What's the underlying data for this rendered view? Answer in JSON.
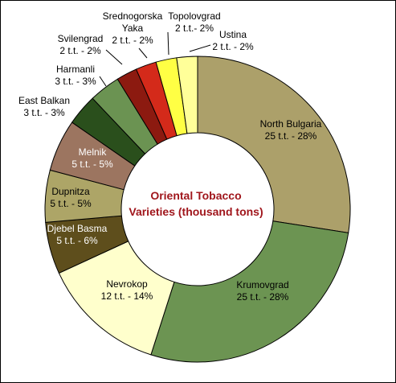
{
  "chart_data": {
    "type": "pie",
    "donut": true,
    "title": "Oriental Tobacco Varieties (thousand tons)",
    "title_lines": [
      "Oriental Tobacco",
      "Varieties (thousand tons)"
    ],
    "title_color": "#a0161c",
    "slices": [
      {
        "name": "North Bulgaria",
        "value": 25,
        "lines": [
          "North Bulgaria",
          "25 t.t. - 28%"
        ],
        "color": "#aca06a"
      },
      {
        "name": "Krumovgrad",
        "value": 25,
        "lines": [
          "Krumovgrad",
          "25 t.t. - 28%"
        ],
        "color": "#6c9452"
      },
      {
        "name": "Nevrokop",
        "value": 12,
        "lines": [
          "Nevrokop",
          "12 t.t. - 14%"
        ],
        "color": "#ffffcc"
      },
      {
        "name": "Djebel Basma",
        "value": 5,
        "lines": [
          "Djebel Basma",
          "5 t.t. - 6%"
        ],
        "color": "#5e4e1c"
      },
      {
        "name": "Dupnitza",
        "value": 5,
        "lines": [
          "Dupnitza",
          "5 t.t. - 5%"
        ],
        "color": "#ada567"
      },
      {
        "name": "Melnik",
        "value": 5,
        "lines": [
          "Melnik",
          "5 t.t. - 5%"
        ],
        "color": "#9c7560"
      },
      {
        "name": "East Balkan",
        "value": 3,
        "lines": [
          "East Balkan",
          "3 t.t. - 3%"
        ],
        "color": "#2a4f1c"
      },
      {
        "name": "Harmanli",
        "value": 3,
        "lines": [
          "Harmanli",
          "3 t.t. - 3%"
        ],
        "color": "#6b9352"
      },
      {
        "name": "Svilengrad",
        "value": 2,
        "lines": [
          "Svilengrad",
          "2 t.t. - 2%"
        ],
        "color": "#8c1a10"
      },
      {
        "name": "Srednogorska Yaka",
        "value": 2,
        "lines": [
          "Srednogorska",
          "Yaka",
          "2 t.t. - 2%"
        ],
        "color": "#d42a1a"
      },
      {
        "name": "Topolovgrad",
        "value": 2,
        "lines": [
          "Topolovgrad",
          "2 t.t.- 2%"
        ],
        "color": "#ffff44"
      },
      {
        "name": "Ustina",
        "value": 2,
        "lines": [
          "Ustina",
          "2 t.t. - 2%"
        ],
        "color": "#ffff99"
      }
    ]
  }
}
